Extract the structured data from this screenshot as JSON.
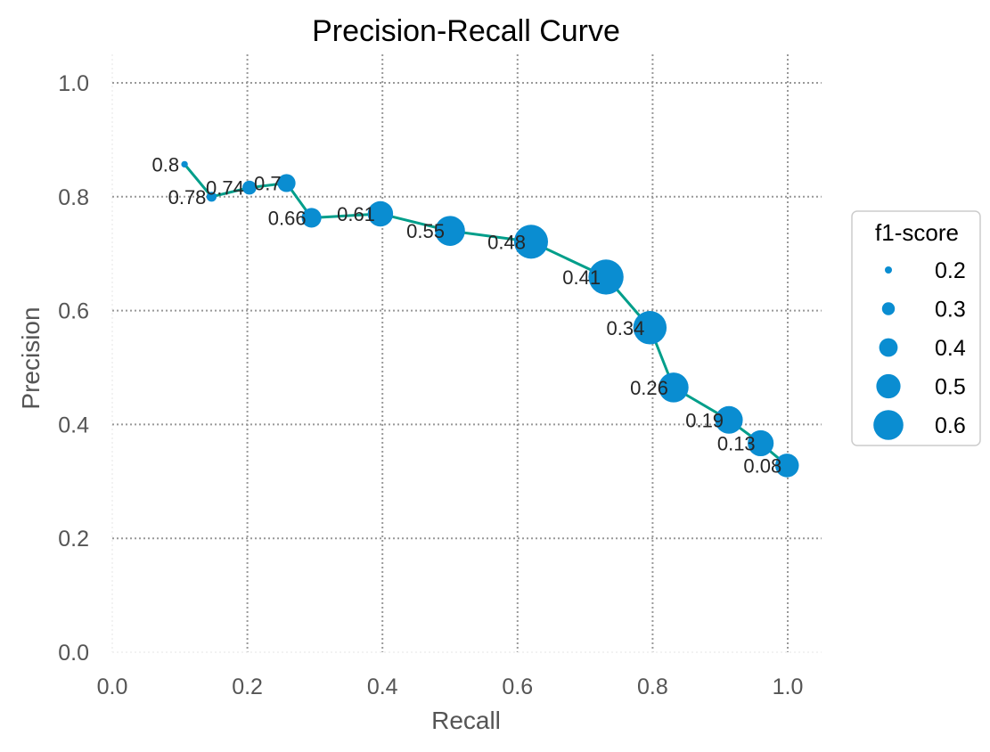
{
  "chart_data": {
    "type": "scatter",
    "title": "Precision-Recall Curve",
    "xlabel": "Recall",
    "ylabel": "Precision",
    "xlim": [
      0.0,
      1.05
    ],
    "ylim": [
      0.0,
      1.05
    ],
    "xticks": [
      "0.0",
      "0.2",
      "0.4",
      "0.6",
      "0.8",
      "1.0"
    ],
    "yticks": [
      "0.0",
      "0.2",
      "0.4",
      "0.6",
      "0.8",
      "1.0"
    ],
    "grid": true,
    "line_color": "#009E8A",
    "marker_color": "#0A8DD1",
    "points": [
      {
        "label": "0.8",
        "recall": 0.107,
        "precision": 0.857,
        "f1": 0.19
      },
      {
        "label": "0.78",
        "recall": 0.147,
        "precision": 0.8,
        "f1": 0.25
      },
      {
        "label": "0.74",
        "recall": 0.203,
        "precision": 0.816,
        "f1": 0.32
      },
      {
        "label": "0.7",
        "recall": 0.258,
        "precision": 0.824,
        "f1": 0.39
      },
      {
        "label": "0.66",
        "recall": 0.295,
        "precision": 0.763,
        "f1": 0.42
      },
      {
        "label": "0.61",
        "recall": 0.397,
        "precision": 0.77,
        "f1": 0.52
      },
      {
        "label": "0.55",
        "recall": 0.5,
        "precision": 0.74,
        "f1": 0.6
      },
      {
        "label": "0.48",
        "recall": 0.62,
        "precision": 0.721,
        "f1": 0.67
      },
      {
        "label": "0.41",
        "recall": 0.731,
        "precision": 0.659,
        "f1": 0.69
      },
      {
        "label": "0.34",
        "recall": 0.796,
        "precision": 0.57,
        "f1": 0.66
      },
      {
        "label": "0.26",
        "recall": 0.831,
        "precision": 0.465,
        "f1": 0.6
      },
      {
        "label": "0.19",
        "recall": 0.913,
        "precision": 0.408,
        "f1": 0.56
      },
      {
        "label": "0.13",
        "recall": 0.96,
        "precision": 0.367,
        "f1": 0.53
      },
      {
        "label": "0.08",
        "recall": 0.999,
        "precision": 0.328,
        "f1": 0.49
      }
    ],
    "legend": {
      "title": "f1-score",
      "position": "right",
      "entries": [
        {
          "label": "0.2",
          "f1": 0.2
        },
        {
          "label": "0.3",
          "f1": 0.3
        },
        {
          "label": "0.4",
          "f1": 0.4
        },
        {
          "label": "0.5",
          "f1": 0.5
        },
        {
          "label": "0.6",
          "f1": 0.6
        }
      ]
    }
  }
}
